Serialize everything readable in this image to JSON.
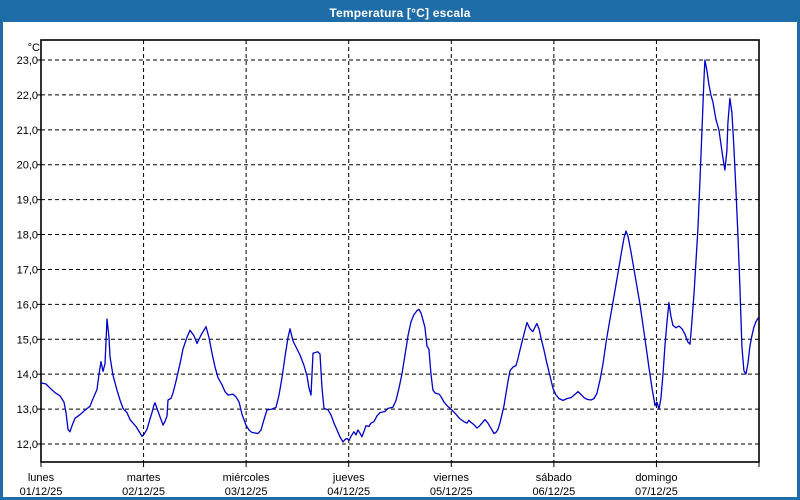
{
  "window": {
    "title": "Temperatura [°C] escala"
  },
  "colors": {
    "frame": "#1e6ca8",
    "titlebar": "#1e6ca8",
    "title_text": "#ffffff",
    "plot_bg": "#ffffff",
    "plot_border": "#000000",
    "grid": "#000000",
    "tick_text": "#000000",
    "line": "#0000c8"
  },
  "chart_data": {
    "type": "line",
    "title": "Temperatura [°C] escala",
    "ylabel": "°C",
    "ylim": [
      12,
      23
    ],
    "grid": "dashed",
    "legend": "none",
    "y_ticks": [
      {
        "value": 23,
        "label": "23,0"
      },
      {
        "value": 22,
        "label": "22,0"
      },
      {
        "value": 21,
        "label": "21,0"
      },
      {
        "value": 20,
        "label": "20,0"
      },
      {
        "value": 19,
        "label": "19,0"
      },
      {
        "value": 18,
        "label": "18,0"
      },
      {
        "value": 17,
        "label": "17,0"
      },
      {
        "value": 16,
        "label": "16,0"
      },
      {
        "value": 15,
        "label": "15,0"
      },
      {
        "value": 14,
        "label": "14,0"
      },
      {
        "value": 13,
        "label": "13,0"
      },
      {
        "value": 12,
        "label": "12,0"
      }
    ],
    "x_days": [
      {
        "name": "lunes",
        "date": "01/12/25"
      },
      {
        "name": "martes",
        "date": "02/12/25"
      },
      {
        "name": "miércoles",
        "date": "03/12/25"
      },
      {
        "name": "jueves",
        "date": "04/12/25"
      },
      {
        "name": "viernes",
        "date": "05/12/25"
      },
      {
        "name": "sábado",
        "date": "06/12/25"
      },
      {
        "name": "domingo",
        "date": "07/12/25"
      }
    ],
    "series": [
      {
        "name": "Temperatura",
        "color": "#0000c8",
        "points": [
          [
            0.0,
            13.75
          ],
          [
            0.049,
            13.72
          ],
          [
            0.088,
            13.6
          ],
          [
            0.137,
            13.47
          ],
          [
            0.185,
            13.38
          ],
          [
            0.224,
            13.2
          ],
          [
            0.244,
            12.9
          ],
          [
            0.263,
            12.42
          ],
          [
            0.283,
            12.35
          ],
          [
            0.302,
            12.52
          ],
          [
            0.331,
            12.74
          ],
          [
            0.38,
            12.84
          ],
          [
            0.429,
            12.97
          ],
          [
            0.478,
            13.08
          ],
          [
            0.507,
            13.3
          ],
          [
            0.546,
            13.56
          ],
          [
            0.565,
            14.0
          ],
          [
            0.585,
            14.36
          ],
          [
            0.604,
            14.08
          ],
          [
            0.624,
            14.3
          ],
          [
            0.643,
            15.58
          ],
          [
            0.663,
            15.05
          ],
          [
            0.673,
            14.5
          ],
          [
            0.702,
            13.97
          ],
          [
            0.741,
            13.54
          ],
          [
            0.77,
            13.26
          ],
          [
            0.799,
            13.02
          ],
          [
            0.838,
            12.9
          ],
          [
            0.868,
            12.7
          ],
          [
            0.897,
            12.6
          ],
          [
            0.926,
            12.5
          ],
          [
            0.955,
            12.36
          ],
          [
            0.985,
            12.22
          ],
          [
            1.004,
            12.28
          ],
          [
            1.033,
            12.42
          ],
          [
            1.063,
            12.72
          ],
          [
            1.082,
            12.9
          ],
          [
            1.102,
            13.12
          ],
          [
            1.111,
            13.18
          ],
          [
            1.131,
            13.02
          ],
          [
            1.16,
            12.78
          ],
          [
            1.19,
            12.54
          ],
          [
            1.209,
            12.65
          ],
          [
            1.228,
            12.8
          ],
          [
            1.238,
            13.26
          ],
          [
            1.267,
            13.31
          ],
          [
            1.287,
            13.46
          ],
          [
            1.316,
            13.8
          ],
          [
            1.355,
            14.3
          ],
          [
            1.384,
            14.72
          ],
          [
            1.423,
            15.06
          ],
          [
            1.453,
            15.26
          ],
          [
            1.492,
            15.1
          ],
          [
            1.521,
            14.88
          ],
          [
            1.56,
            15.12
          ],
          [
            1.609,
            15.36
          ],
          [
            1.638,
            15.05
          ],
          [
            1.667,
            14.6
          ],
          [
            1.696,
            14.21
          ],
          [
            1.726,
            13.9
          ],
          [
            1.765,
            13.7
          ],
          [
            1.794,
            13.5
          ],
          [
            1.823,
            13.4
          ],
          [
            1.872,
            13.43
          ],
          [
            1.901,
            13.35
          ],
          [
            1.931,
            13.2
          ],
          [
            1.96,
            12.85
          ],
          [
            1.999,
            12.54
          ],
          [
            2.028,
            12.4
          ],
          [
            2.057,
            12.33
          ],
          [
            2.116,
            12.3
          ],
          [
            2.145,
            12.4
          ],
          [
            2.174,
            12.7
          ],
          [
            2.203,
            12.98
          ],
          [
            2.252,
            13.0
          ],
          [
            2.291,
            13.05
          ],
          [
            2.32,
            13.4
          ],
          [
            2.35,
            13.9
          ],
          [
            2.379,
            14.5
          ],
          [
            2.408,
            15.05
          ],
          [
            2.428,
            15.3
          ],
          [
            2.457,
            14.95
          ],
          [
            2.496,
            14.72
          ],
          [
            2.525,
            14.55
          ],
          [
            2.564,
            14.25
          ],
          [
            2.593,
            13.95
          ],
          [
            2.613,
            13.6
          ],
          [
            2.632,
            13.4
          ],
          [
            2.652,
            14.6
          ],
          [
            2.7,
            14.64
          ],
          [
            2.72,
            14.58
          ],
          [
            2.74,
            13.6
          ],
          [
            2.759,
            13.02
          ],
          [
            2.798,
            12.98
          ],
          [
            2.827,
            12.83
          ],
          [
            2.857,
            12.6
          ],
          [
            2.886,
            12.4
          ],
          [
            2.915,
            12.2
          ],
          [
            2.944,
            12.06
          ],
          [
            2.964,
            12.13
          ],
          [
            2.983,
            12.16
          ],
          [
            3.003,
            12.1
          ],
          [
            3.022,
            12.22
          ],
          [
            3.051,
            12.35
          ],
          [
            3.071,
            12.26
          ],
          [
            3.09,
            12.4
          ],
          [
            3.11,
            12.31
          ],
          [
            3.129,
            12.21
          ],
          [
            3.149,
            12.36
          ],
          [
            3.168,
            12.52
          ],
          [
            3.197,
            12.5
          ],
          [
            3.217,
            12.6
          ],
          [
            3.246,
            12.64
          ],
          [
            3.275,
            12.8
          ],
          [
            3.305,
            12.9
          ],
          [
            3.353,
            12.93
          ],
          [
            3.383,
            13.02
          ],
          [
            3.431,
            13.05
          ],
          [
            3.461,
            13.25
          ],
          [
            3.49,
            13.6
          ],
          [
            3.519,
            14.0
          ],
          [
            3.549,
            14.55
          ],
          [
            3.578,
            15.1
          ],
          [
            3.607,
            15.5
          ],
          [
            3.636,
            15.7
          ],
          [
            3.666,
            15.82
          ],
          [
            3.685,
            15.86
          ],
          [
            3.705,
            15.75
          ],
          [
            3.724,
            15.55
          ],
          [
            3.743,
            15.35
          ],
          [
            3.763,
            14.8
          ],
          [
            3.782,
            14.72
          ],
          [
            3.802,
            14.0
          ],
          [
            3.821,
            13.55
          ],
          [
            3.841,
            13.46
          ],
          [
            3.88,
            13.43
          ],
          [
            3.899,
            13.36
          ],
          [
            3.929,
            13.2
          ],
          [
            3.958,
            13.1
          ],
          [
            3.987,
            13.02
          ],
          [
            4.007,
            12.97
          ],
          [
            4.046,
            12.85
          ],
          [
            4.085,
            12.72
          ],
          [
            4.124,
            12.64
          ],
          [
            4.153,
            12.6
          ],
          [
            4.172,
            12.68
          ],
          [
            4.192,
            12.62
          ],
          [
            4.221,
            12.55
          ],
          [
            4.25,
            12.46
          ],
          [
            4.27,
            12.5
          ],
          [
            4.299,
            12.6
          ],
          [
            4.328,
            12.7
          ],
          [
            4.357,
            12.6
          ],
          [
            4.387,
            12.45
          ],
          [
            4.416,
            12.3
          ],
          [
            4.435,
            12.33
          ],
          [
            4.455,
            12.42
          ],
          [
            4.474,
            12.6
          ],
          [
            4.494,
            12.85
          ],
          [
            4.514,
            13.1
          ],
          [
            4.533,
            13.45
          ],
          [
            4.553,
            13.8
          ],
          [
            4.572,
            14.1
          ],
          [
            4.601,
            14.2
          ],
          [
            4.631,
            14.25
          ],
          [
            4.65,
            14.45
          ],
          [
            4.679,
            14.8
          ],
          [
            4.709,
            15.15
          ],
          [
            4.738,
            15.48
          ],
          [
            4.767,
            15.3
          ],
          [
            4.796,
            15.22
          ],
          [
            4.816,
            15.35
          ],
          [
            4.835,
            15.45
          ],
          [
            4.855,
            15.3
          ],
          [
            4.874,
            15.05
          ],
          [
            4.903,
            14.7
          ],
          [
            4.933,
            14.3
          ],
          [
            4.962,
            13.95
          ],
          [
            4.991,
            13.6
          ],
          [
            5.021,
            13.4
          ],
          [
            5.05,
            13.3
          ],
          [
            5.089,
            13.25
          ],
          [
            5.128,
            13.3
          ],
          [
            5.167,
            13.33
          ],
          [
            5.206,
            13.42
          ],
          [
            5.235,
            13.5
          ],
          [
            5.264,
            13.42
          ],
          [
            5.294,
            13.33
          ],
          [
            5.323,
            13.28
          ],
          [
            5.362,
            13.26
          ],
          [
            5.391,
            13.3
          ],
          [
            5.42,
            13.45
          ],
          [
            5.45,
            13.83
          ],
          [
            5.479,
            14.3
          ],
          [
            5.508,
            14.9
          ],
          [
            5.537,
            15.4
          ],
          [
            5.567,
            15.9
          ],
          [
            5.596,
            16.4
          ],
          [
            5.625,
            16.9
          ],
          [
            5.654,
            17.4
          ],
          [
            5.684,
            17.9
          ],
          [
            5.703,
            18.1
          ],
          [
            5.723,
            17.95
          ],
          [
            5.752,
            17.5
          ],
          [
            5.781,
            17.0
          ],
          [
            5.811,
            16.5
          ],
          [
            5.84,
            16.0
          ],
          [
            5.869,
            15.4
          ],
          [
            5.898,
            14.8
          ],
          [
            5.927,
            14.2
          ],
          [
            5.957,
            13.6
          ],
          [
            5.986,
            13.1
          ],
          [
            6.005,
            13.2
          ],
          [
            6.025,
            13.0
          ],
          [
            6.044,
            13.3
          ],
          [
            6.064,
            14.0
          ],
          [
            6.083,
            14.8
          ],
          [
            6.103,
            15.5
          ],
          [
            6.122,
            16.05
          ],
          [
            6.142,
            15.65
          ],
          [
            6.161,
            15.4
          ],
          [
            6.19,
            15.33
          ],
          [
            6.219,
            15.38
          ],
          [
            6.249,
            15.3
          ],
          [
            6.278,
            15.15
          ],
          [
            6.307,
            14.92
          ],
          [
            6.327,
            14.86
          ],
          [
            6.346,
            15.5
          ],
          [
            6.366,
            16.3
          ],
          [
            6.385,
            17.2
          ],
          [
            6.405,
            18.2
          ],
          [
            6.424,
            19.5
          ],
          [
            6.444,
            21.0
          ],
          [
            6.463,
            22.4
          ],
          [
            6.473,
            23.0
          ],
          [
            6.492,
            22.7
          ],
          [
            6.512,
            22.3
          ],
          [
            6.531,
            22.0
          ],
          [
            6.551,
            21.8
          ],
          [
            6.58,
            21.3
          ],
          [
            6.609,
            21.0
          ],
          [
            6.629,
            20.6
          ],
          [
            6.648,
            20.2
          ],
          [
            6.668,
            19.85
          ],
          [
            6.687,
            20.4
          ],
          [
            6.697,
            21.2
          ],
          [
            6.716,
            21.9
          ],
          [
            6.736,
            21.5
          ],
          [
            6.755,
            20.5
          ],
          [
            6.775,
            19.3
          ],
          [
            6.794,
            18.0
          ],
          [
            6.814,
            16.5
          ],
          [
            6.833,
            14.8
          ],
          [
            6.853,
            14.1
          ],
          [
            6.872,
            14.0
          ],
          [
            6.892,
            14.3
          ],
          [
            6.911,
            14.8
          ],
          [
            6.931,
            15.1
          ],
          [
            6.95,
            15.35
          ],
          [
            6.97,
            15.5
          ],
          [
            6.989,
            15.6
          ],
          [
            6.999,
            15.62
          ]
        ]
      }
    ]
  }
}
